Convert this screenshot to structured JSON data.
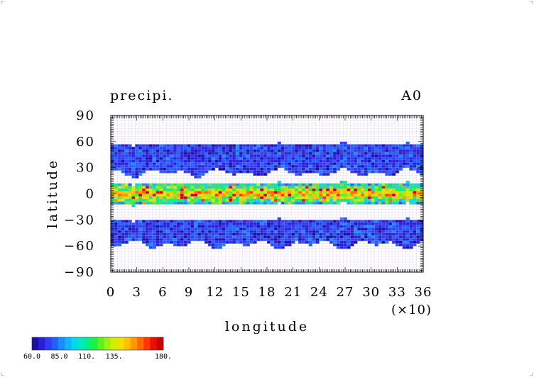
{
  "chart_data": {
    "type": "heatmap",
    "title": "precipi.",
    "subtitle": "A0",
    "xlabel": "longitude",
    "ylabel": "latitude",
    "x_scale_note": "(×10)",
    "xlim": [
      0,
      36
    ],
    "ylim": [
      -90,
      90
    ],
    "x_ticks": [
      "0",
      "3",
      "6",
      "9",
      "12",
      "15",
      "18",
      "21",
      "24",
      "27",
      "30",
      "33",
      "36"
    ],
    "y_ticks": [
      "90",
      "60",
      "30",
      "0",
      "−30",
      "−60",
      "−90"
    ],
    "grid": true,
    "colorbar": {
      "range": [
        60,
        180
      ],
      "tick_labels": [
        "60.0",
        "85.0",
        "110.",
        "135.",
        "180."
      ],
      "colors": [
        "#1b0fa8",
        "#2a1fd6",
        "#2f3cf0",
        "#2060ff",
        "#1a8cff",
        "#10b4ff",
        "#00d8f0",
        "#00e8c0",
        "#00f088",
        "#20f040",
        "#60f020",
        "#a0f010",
        "#d0f000",
        "#f0e000",
        "#ffc000",
        "#ff9800",
        "#ff6a00",
        "#ff3800",
        "#e81000",
        "#c80000"
      ]
    },
    "bands": [
      {
        "lat_range": [
          -58,
          -30
        ],
        "level": 0.12
      },
      {
        "lat_range": [
          -12,
          12
        ],
        "level": 0.55
      },
      {
        "lat_range": [
          24,
          57
        ],
        "level": 0.12
      }
    ]
  }
}
